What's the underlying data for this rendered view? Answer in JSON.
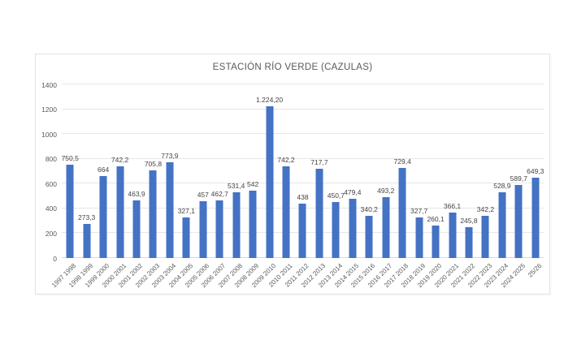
{
  "chart_data": {
    "type": "bar",
    "title": "ESTACIÓN RÍO VERDE (CAZULAS)",
    "categories": [
      "1997 1998",
      "1998 1999",
      "1999 2000",
      "2000 2001",
      "2001 2002",
      "2002 2003",
      "2003 2004",
      "2004 2005",
      "2005 2006",
      "2006 2007",
      "2007 2008",
      "2008 2009",
      "2009 2010",
      "2010 2011",
      "2011 2012",
      "2012 2013",
      "2013 2014",
      "2014 2015",
      "2015 2016",
      "2016 2017",
      "2017 2018",
      "2018 2019",
      "2019 2020",
      "2020 2021",
      "2021 2022",
      "2022 2023",
      "2023 2024",
      "2024 2025",
      "25/26"
    ],
    "values": [
      750.5,
      273.3,
      664,
      742.2,
      463.9,
      705.8,
      773.9,
      327.1,
      457,
      462.7,
      531.4,
      542,
      1224.2,
      742.2,
      438,
      717.7,
      450.7,
      479.4,
      340.2,
      493.2,
      729.4,
      327.7,
      260.1,
      366.1,
      245.8,
      342.2,
      528.9,
      589.7,
      649.3
    ],
    "value_labels": [
      "750,5",
      "273,3",
      "664",
      "742,2",
      "463,9",
      "705,8",
      "773,9",
      "327,1",
      "457",
      "462,7",
      "531,4",
      "542",
      "1.224,20",
      "742,2",
      "438",
      "717,7",
      "450,7",
      "479,4",
      "340,2",
      "493,2",
      "729,4",
      "327,7",
      "260,1",
      "366,1",
      "245,8",
      "342,2",
      "528,9",
      "589,7",
      "649,3"
    ],
    "xlabel": "",
    "ylabel": "",
    "ylim": [
      0,
      1400
    ],
    "yticks": [
      0,
      200,
      400,
      600,
      800,
      1000,
      1200,
      1400
    ],
    "grid": true,
    "legend": false,
    "bar_color": "#4472C4",
    "title_color": "#595959",
    "axis_label_color": "#595959",
    "data_label_color": "#444444"
  }
}
